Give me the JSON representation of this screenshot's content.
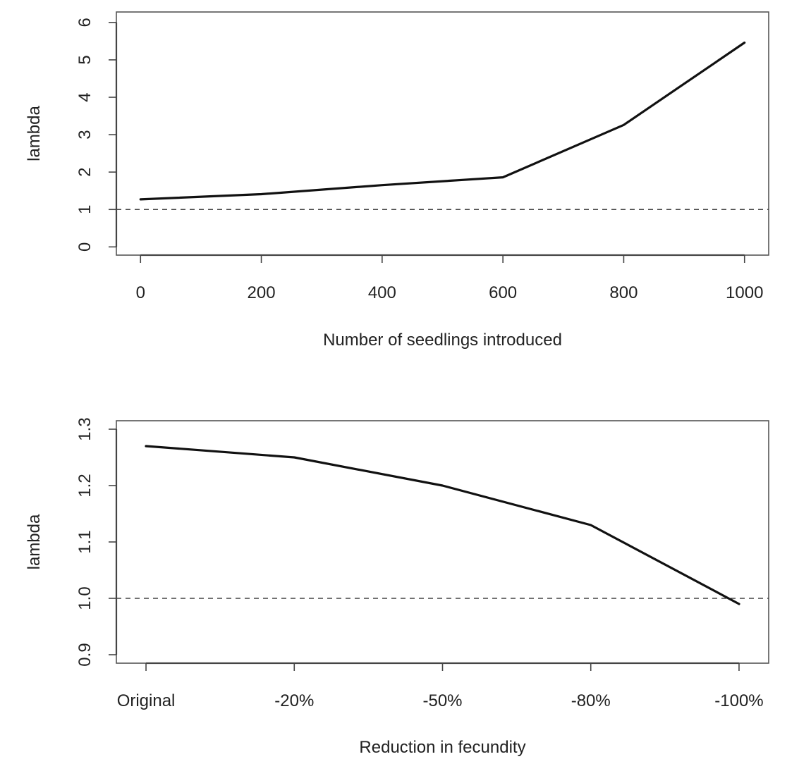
{
  "chart_data": [
    {
      "type": "line",
      "title": "",
      "xlabel": "Number of seedlings introduced",
      "ylabel": "lambda",
      "x": [
        0,
        200,
        400,
        600,
        800,
        1000
      ],
      "series": [
        {
          "values": [
            1.27,
            1.41,
            1.65,
            1.86,
            3.26,
            5.46
          ],
          "color": "#111111",
          "style": "solid"
        }
      ],
      "reference_line": {
        "y": 1.0,
        "style": "dashed",
        "color": "#444444"
      },
      "xticks": [
        0,
        200,
        400,
        600,
        800,
        1000
      ],
      "xtick_labels": [
        "0",
        "200",
        "400",
        "600",
        "800",
        "1000"
      ],
      "yticks": [
        0,
        1,
        2,
        3,
        4,
        5,
        6
      ],
      "ytick_labels": [
        "0",
        "1",
        "2",
        "3",
        "4",
        "5",
        "6"
      ],
      "xlim": [
        -40,
        1040
      ],
      "ylim": [
        -0.22,
        6.28
      ],
      "grid": false,
      "legend": "none"
    },
    {
      "type": "line",
      "title": "",
      "xlabel": "Reduction in fecundity",
      "ylabel": "lambda",
      "categories": [
        "Original",
        "-20%",
        "-50%",
        "-80%",
        "-100%"
      ],
      "series": [
        {
          "values": [
            1.27,
            1.25,
            1.2,
            1.13,
            0.99
          ],
          "color": "#111111",
          "style": "solid"
        }
      ],
      "reference_line": {
        "y": 1.0,
        "style": "dashed",
        "color": "#444444"
      },
      "yticks": [
        0.9,
        1.0,
        1.1,
        1.2,
        1.3
      ],
      "ytick_labels": [
        "0.9",
        "1.0",
        "1.1",
        "1.2",
        "1.3"
      ],
      "ylim": [
        0.885,
        1.315
      ],
      "grid": false,
      "legend": "none"
    }
  ]
}
